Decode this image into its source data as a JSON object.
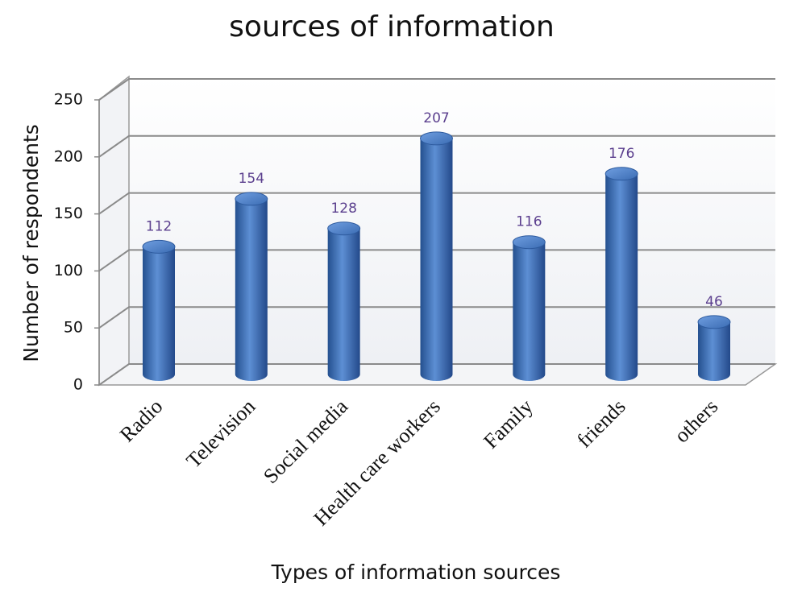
{
  "chart_data": {
    "type": "bar",
    "title": "sources of information",
    "x_label": "Types of information sources",
    "y_label": "Number of respondents",
    "categories": [
      "Radio",
      "Television",
      "Social media",
      "Health care workers",
      "Family",
      "friends",
      "others"
    ],
    "values": [
      112,
      154,
      128,
      207,
      116,
      176,
      46
    ],
    "color": "#3a6db3",
    "ylim": [
      0,
      250
    ],
    "yticks": [
      0,
      50,
      100,
      150,
      200,
      250
    ],
    "grid": true
  }
}
